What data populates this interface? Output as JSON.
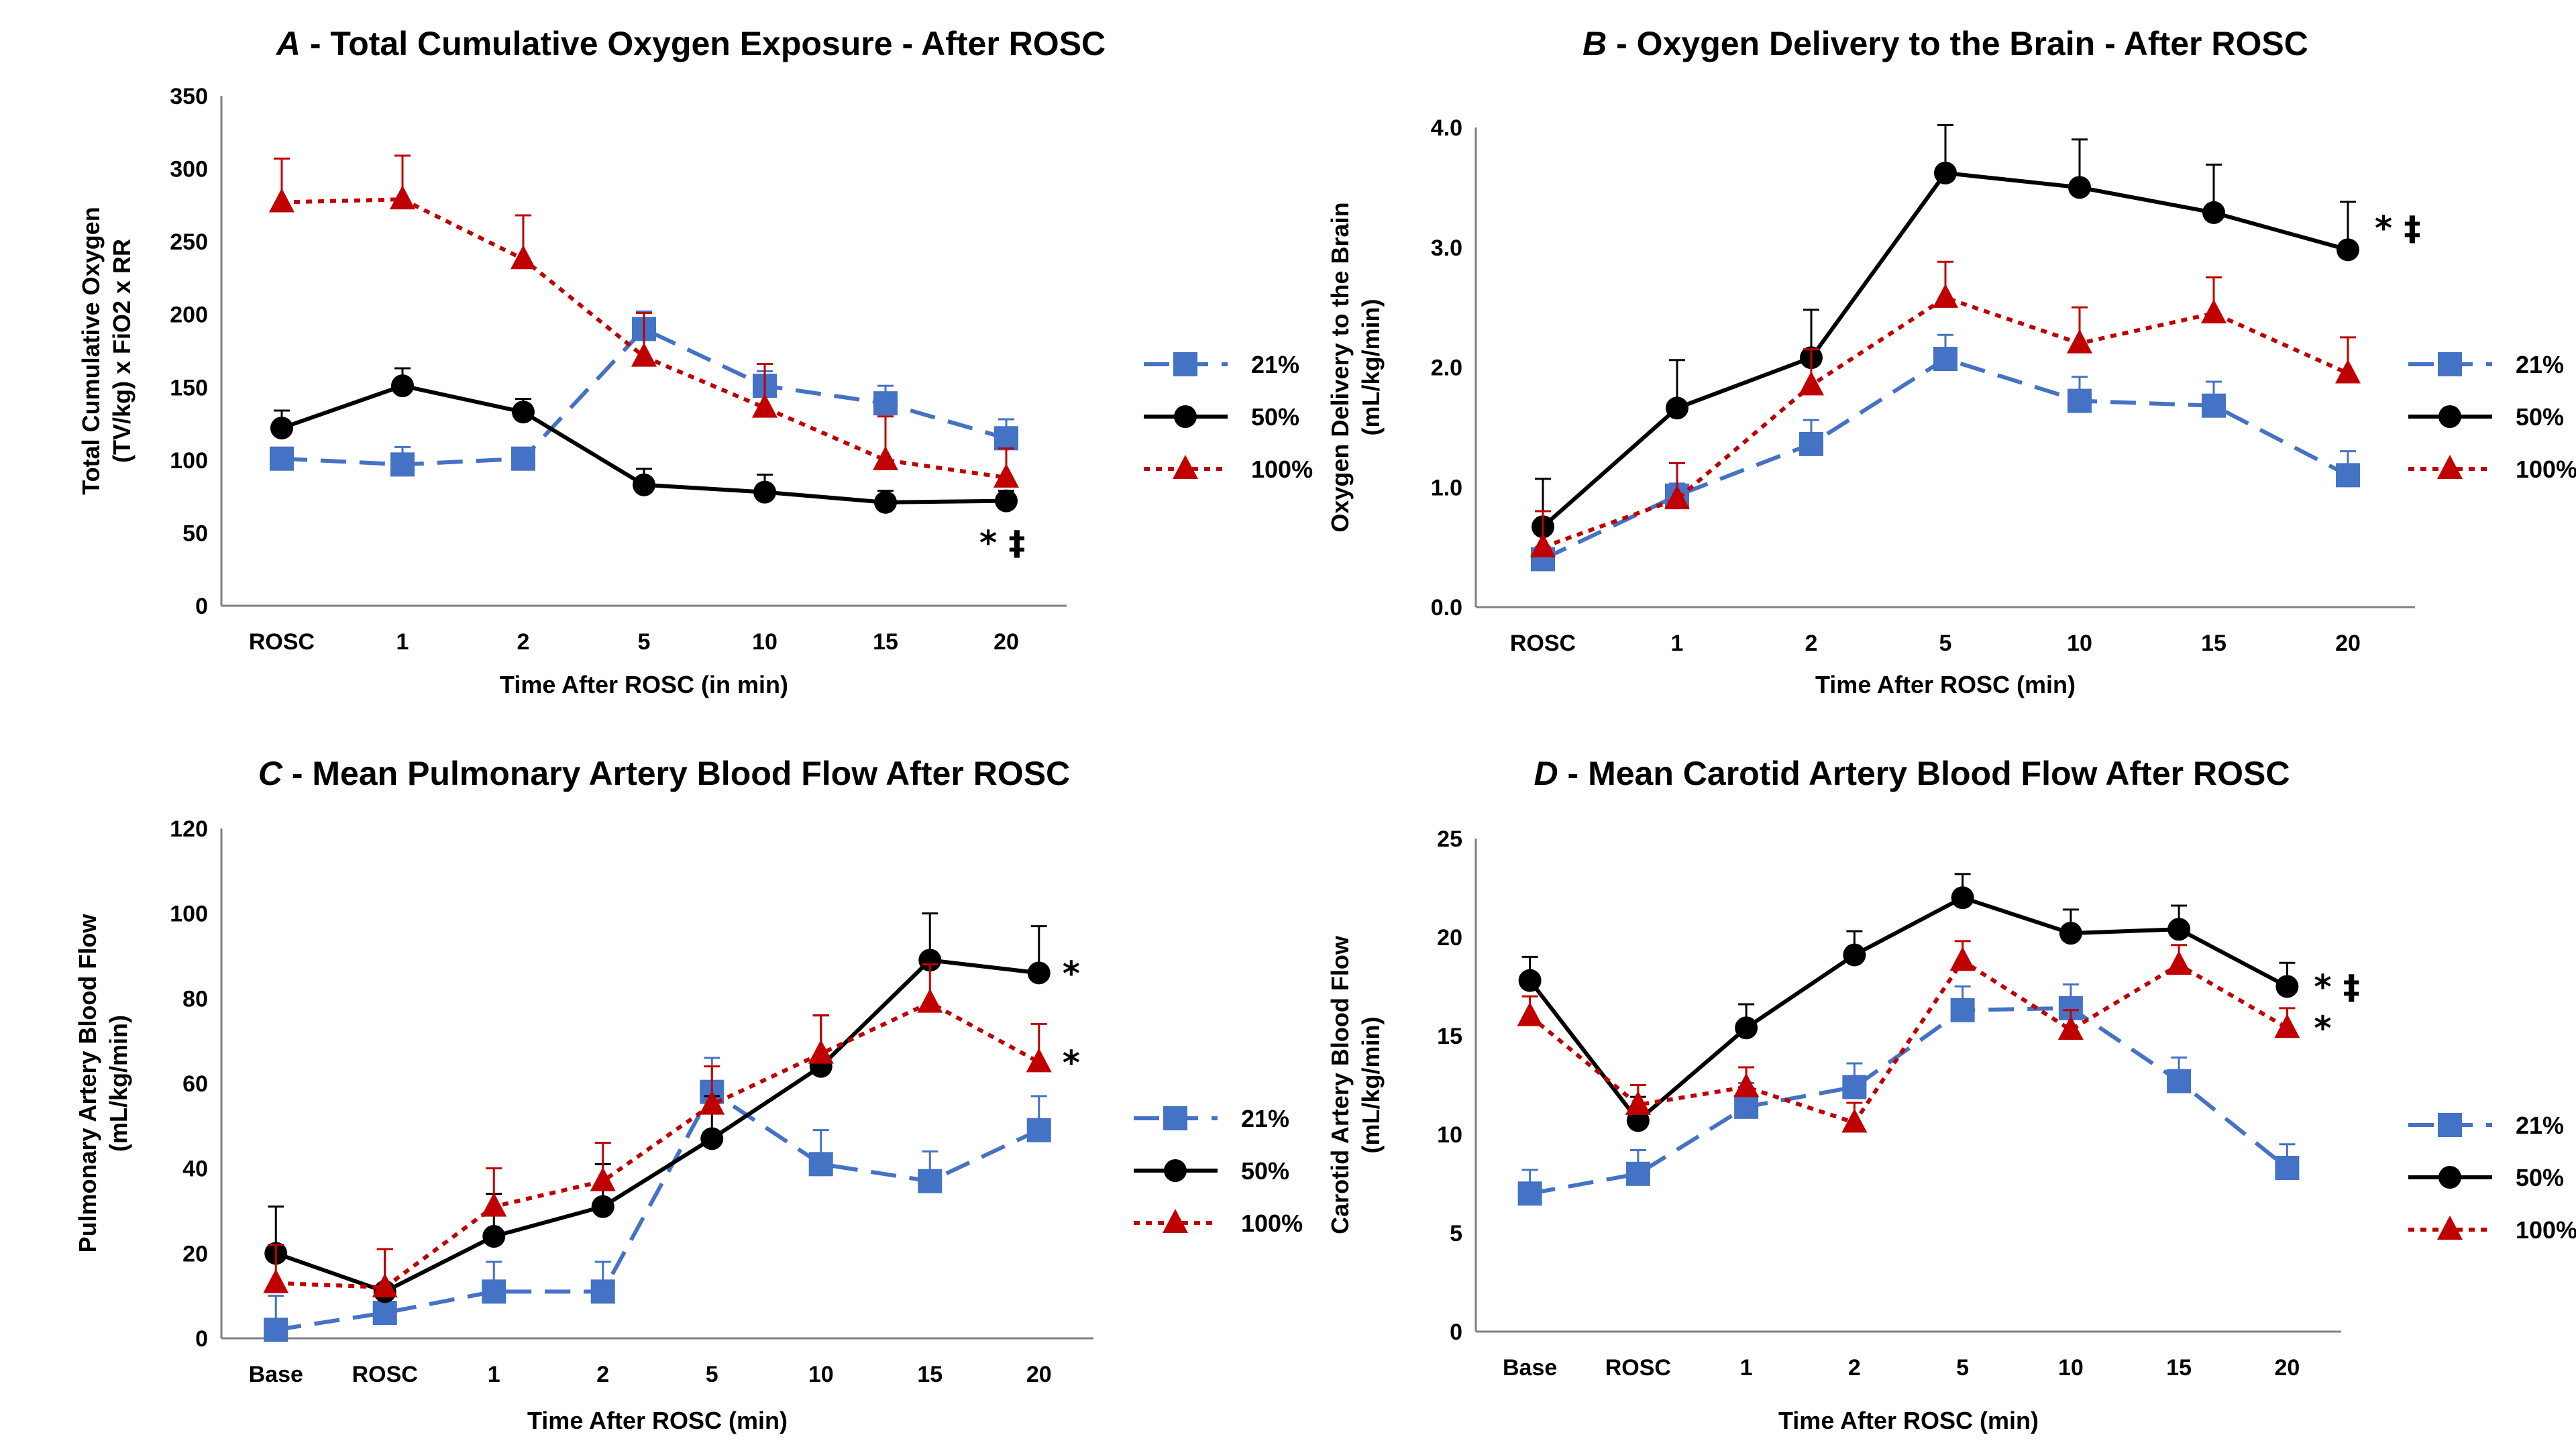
{
  "series_styles": [
    {
      "name": "21%",
      "color": "#4472C4",
      "marker": "square",
      "dash": "dashed"
    },
    {
      "name": "50%",
      "color": "#000000",
      "marker": "circle",
      "dash": "solid"
    },
    {
      "name": "100%",
      "color": "#C00000",
      "marker": "triangle",
      "dash": "dotted"
    }
  ],
  "chart_data": [
    {
      "type": "line",
      "letter": "A",
      "title": " - Total Cumulative Oxygen Exposure - After ROSC",
      "xlabel": "Time After ROSC (in min)",
      "ylabel": [
        "Total Cumulative Oxygen",
        "(TV/kg) x FiO2 x RR"
      ],
      "categories": [
        "ROSC",
        "1",
        "2",
        "5",
        "10",
        "15",
        "20"
      ],
      "ylim": [
        0,
        350
      ],
      "yticks": [
        0,
        50,
        100,
        150,
        200,
        250,
        300,
        350
      ],
      "tick_decimals": 0,
      "grid": false,
      "legend": "right",
      "series": [
        {
          "name": "21%",
          "values": [
            101,
            97,
            101,
            190,
            151,
            139,
            115
          ],
          "errors": [
            5,
            12,
            6,
            12,
            10,
            12,
            13
          ]
        },
        {
          "name": "50%",
          "values": [
            122,
            151,
            133,
            83,
            78,
            71,
            72
          ],
          "errors": [
            12,
            12,
            9,
            11,
            12,
            8,
            7
          ]
        },
        {
          "name": "100%",
          "values": [
            277,
            279,
            238,
            171,
            136,
            100,
            88
          ],
          "errors": [
            30,
            30,
            30,
            30,
            30,
            30,
            20
          ]
        }
      ],
      "annotations": [
        {
          "text": "* ‡",
          "at": 6
        }
      ]
    },
    {
      "type": "line",
      "letter": "B",
      "title": " - Oxygen Delivery to the Brain - After ROSC",
      "xlabel": "Time After ROSC (min)",
      "ylabel": [
        "Oxygen Delivery to the Brain",
        "(mL/kg/min)"
      ],
      "categories": [
        "ROSC",
        "1",
        "2",
        "5",
        "10",
        "15",
        "20"
      ],
      "ylim": [
        0,
        4
      ],
      "yticks": [
        0,
        1,
        2,
        3,
        4
      ],
      "tick_decimals": 1,
      "grid": false,
      "legend": "right",
      "series": [
        {
          "name": "21%",
          "values": [
            0.4,
            0.93,
            1.36,
            2.07,
            1.72,
            1.68,
            1.1
          ],
          "errors": [
            0.1,
            0.1,
            0.2,
            0.2,
            0.2,
            0.2,
            0.2
          ]
        },
        {
          "name": "50%",
          "values": [
            0.67,
            1.66,
            2.08,
            3.62,
            3.5,
            3.29,
            2.98
          ],
          "errors": [
            0.4,
            0.4,
            0.4,
            0.4,
            0.4,
            0.4,
            0.4
          ]
        },
        {
          "name": "100%",
          "values": [
            0.5,
            0.9,
            1.85,
            2.58,
            2.2,
            2.45,
            1.95
          ],
          "errors": [
            0.3,
            0.3,
            0.3,
            0.3,
            0.3,
            0.3,
            0.3
          ]
        }
      ],
      "annotations": [
        {
          "text": "* ‡",
          "at": 6
        }
      ]
    },
    {
      "type": "line",
      "letter": "C",
      "title": " - Mean Pulmonary Artery Blood Flow After ROSC",
      "xlabel": "Time After ROSC (min)",
      "ylabel": [
        "Pulmonary Artery  Blood Flow",
        "(mL/kg/min)"
      ],
      "categories": [
        "Base",
        "ROSC",
        "1",
        "2",
        "5",
        "10",
        "15",
        "20"
      ],
      "ylim": [
        0,
        120
      ],
      "yticks": [
        0,
        20,
        40,
        60,
        80,
        100,
        120
      ],
      "tick_decimals": 0,
      "grid": false,
      "legend": "right",
      "series": [
        {
          "name": "21%",
          "values": [
            2,
            6,
            11,
            11,
            58,
            41,
            37,
            49
          ],
          "errors": [
            8,
            5,
            7,
            7,
            8,
            8,
            7,
            8
          ]
        },
        {
          "name": "50%",
          "values": [
            20,
            11,
            24,
            31,
            47,
            64,
            89,
            86
          ],
          "errors": [
            11,
            10,
            10,
            10,
            10,
            12,
            11,
            11
          ]
        },
        {
          "name": "100%",
          "values": [
            13,
            12,
            31,
            37,
            55,
            67,
            79,
            65
          ],
          "errors": [
            9,
            9,
            9,
            9,
            9,
            9,
            9,
            9
          ]
        }
      ],
      "annotations": [
        {
          "text": "*",
          "at": 7,
          "series": "50%"
        },
        {
          "text": "*",
          "at": 7,
          "series": "100%"
        }
      ]
    },
    {
      "type": "line",
      "letter": "D",
      "title": " - Mean Carotid Artery Blood Flow After ROSC",
      "xlabel": "Time After ROSC (min)",
      "ylabel": [
        "Carotid Artery Blood Flow",
        "(mL/kg/min)"
      ],
      "categories": [
        "Base",
        "ROSC",
        "1",
        "2",
        "5",
        "10",
        "15",
        "20"
      ],
      "ylim": [
        0,
        25
      ],
      "yticks": [
        0,
        5,
        10,
        15,
        20,
        25
      ],
      "tick_decimals": 0,
      "grid": false,
      "legend": "right",
      "series": [
        {
          "name": "21%",
          "values": [
            7,
            8,
            11.4,
            12.4,
            16.3,
            16.4,
            12.7,
            8.3
          ],
          "errors": [
            1.2,
            1.2,
            1.2,
            1.2,
            1.2,
            1.2,
            1.2,
            1.2
          ]
        },
        {
          "name": "50%",
          "values": [
            17.8,
            10.7,
            15.4,
            19.1,
            22,
            20.2,
            20.4,
            17.5
          ],
          "errors": [
            1.2,
            1.2,
            1.2,
            1.2,
            1.2,
            1.2,
            1.2,
            1.2
          ]
        },
        {
          "name": "100%",
          "values": [
            16,
            11.5,
            12.4,
            10.6,
            18.8,
            15.3,
            18.6,
            15.4
          ],
          "errors": [
            1,
            1,
            1,
            1,
            1,
            1,
            1,
            1
          ]
        }
      ],
      "annotations": [
        {
          "text": "* ‡",
          "at": 7,
          "series": "50%"
        },
        {
          "text": "*",
          "at": 7,
          "series": "100%"
        }
      ]
    }
  ]
}
